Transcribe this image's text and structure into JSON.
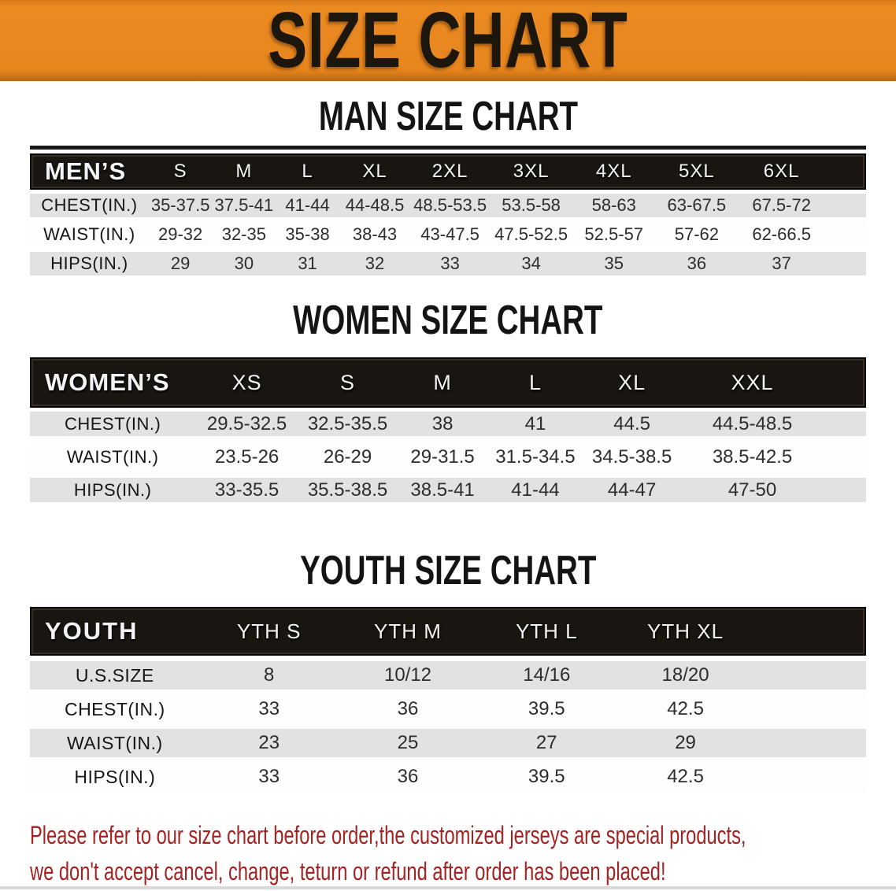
{
  "banner": {
    "title": "SIZE CHART",
    "bg_color": "#E8861E",
    "text_color": "#1D160D"
  },
  "colors": {
    "table_header_bg": "#191511",
    "row_gray": "#E2E2E2",
    "row_white": "#FDFDFD",
    "divider": "#191919",
    "disclaimer_red": "#A52222"
  },
  "sections": [
    {
      "heading": "MAN SIZE CHART",
      "table": {
        "header_label": "MEN’S",
        "columns": [
          "S",
          "M",
          "L",
          "XL",
          "2XL",
          "3XL",
          "4XL",
          "5XL",
          "6XL"
        ],
        "rows": [
          {
            "label": "CHEST(IN.)",
            "values": [
              "35-37.5",
              "37.5-41",
              "41-44",
              "44-48.5",
              "48.5-53.5",
              "53.5-58",
              "58-63",
              "63-67.5",
              "67.5-72"
            ]
          },
          {
            "label": "WAIST(IN.)",
            "values": [
              "29-32",
              "32-35",
              "35-38",
              "38-43",
              "43-47.5",
              "47.5-52.5",
              "52.5-57",
              "57-62",
              "62-66.5"
            ]
          },
          {
            "label": "HIPS(IN.)",
            "values": [
              "29",
              "30",
              "31",
              "32",
              "33",
              "34",
              "35",
              "36",
              "37"
            ]
          }
        ]
      }
    },
    {
      "heading": "WOMEN SIZE CHART",
      "table": {
        "header_label": "WOMEN’S",
        "columns": [
          "XS",
          "S",
          "M",
          "L",
          "XL",
          "XXL"
        ],
        "rows": [
          {
            "label": "CHEST(IN.)",
            "values": [
              "29.5-32.5",
              "32.5-35.5",
              "38",
              "41",
              "44.5",
              "44.5-48.5"
            ]
          },
          {
            "label": "WAIST(IN.)",
            "values": [
              "23.5-26",
              "26-29",
              "29-31.5",
              "31.5-34.5",
              "34.5-38.5",
              "38.5-42.5"
            ]
          },
          {
            "label": "HIPS(IN.)",
            "values": [
              "33-35.5",
              "35.5-38.5",
              "38.5-41",
              "41-44",
              "44-47",
              "47-50"
            ]
          }
        ]
      }
    },
    {
      "heading": "YOUTH SIZE CHART",
      "table": {
        "header_label": "YOUTH",
        "columns": [
          "YTH S",
          "YTH M",
          "YTH L",
          "YTH XL"
        ],
        "rows": [
          {
            "label": "U.S.SIZE",
            "values": [
              "8",
              "10/12",
              "14/16",
              "18/20"
            ]
          },
          {
            "label": "CHEST(IN.)",
            "values": [
              "33",
              "36",
              "39.5",
              "42.5"
            ]
          },
          {
            "label": "WAIST(IN.)",
            "values": [
              "23",
              "25",
              "27",
              "29"
            ]
          },
          {
            "label": "HIPS(IN.)",
            "values": [
              "33",
              "36",
              "39.5",
              "42.5"
            ]
          }
        ]
      }
    }
  ],
  "disclaimer": {
    "line1": "Please refer to our size chart before order,the customized jerseys are special products,",
    "line2": "we don't accept cancel, change, teturn or refund after order has been placed!"
  }
}
